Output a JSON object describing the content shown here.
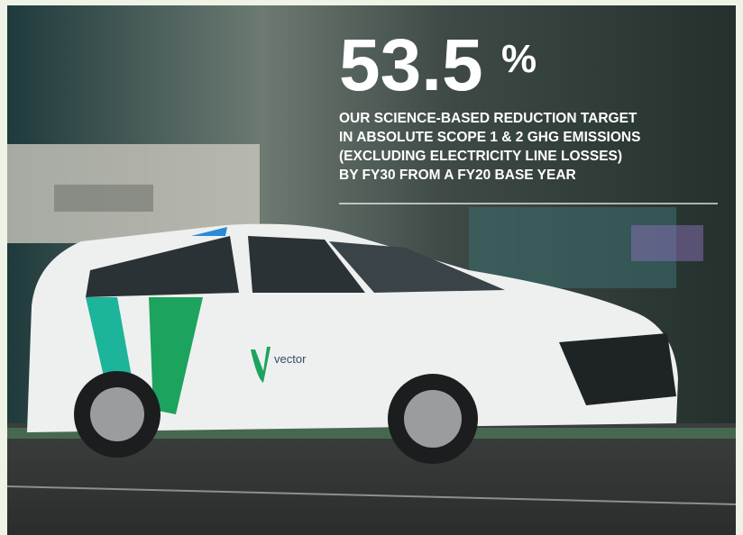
{
  "headline": {
    "number": "53.5",
    "unit": "%"
  },
  "description": [
    "OUR SCIENCE-BASED REDUCTION TARGET",
    "IN ABSOLUTE SCOPE 1 & 2 GHG EMISSIONS",
    "(EXCLUDING ELECTRICITY LINE LOSSES)",
    "BY FY30 FROM A FY20 BASE YEAR"
  ],
  "car_logo": "vector"
}
